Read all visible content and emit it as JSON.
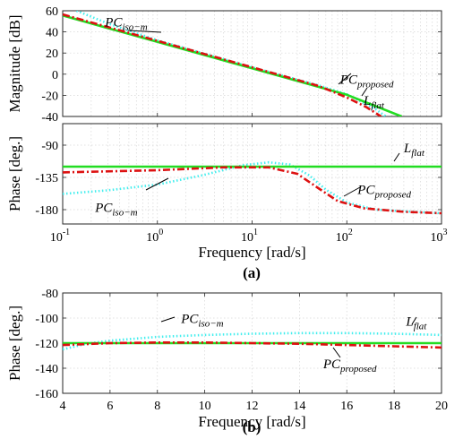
{
  "colors": {
    "L_flat": "#22dd22",
    "PC_proposed": "#dd1111",
    "PC_iso_m": "#44eeee"
  },
  "chart_data": [
    {
      "panel": "a",
      "subplot": "magnitude",
      "type": "line",
      "xscale": "log",
      "xlim": [
        0.1,
        1000
      ],
      "ylim": [
        -40,
        60
      ],
      "ylabel": "Magnitude [dB]",
      "yticks": [
        -40,
        -20,
        0,
        20,
        40,
        60
      ],
      "grid": true,
      "series": [
        {
          "name": "L_flat",
          "x": [
            0.1,
            1,
            10,
            100,
            380
          ],
          "y": [
            55.5,
            30.5,
            5.5,
            -19.5,
            -40
          ]
        },
        {
          "name": "PC_proposed",
          "x": [
            0.1,
            1,
            10,
            50,
            100,
            160,
            230
          ],
          "y": [
            56.5,
            31.5,
            6.5,
            -11,
            -22,
            -31,
            -40
          ]
        },
        {
          "name": "PC_iso-m",
          "x": [
            0.14,
            0.3,
            1,
            10,
            50,
            100,
            200,
            260
          ],
          "y": [
            60,
            48,
            32,
            6.5,
            -10.5,
            -19,
            -33,
            -40
          ]
        }
      ],
      "annotations": [
        {
          "base": "PC",
          "sub": "iso−m",
          "x": 0.28,
          "y": 45
        },
        {
          "base": "PC",
          "sub": "proposed",
          "x": 85,
          "y": -9
        },
        {
          "base": "L",
          "sub": "flat",
          "x": 150,
          "y": -29
        }
      ]
    },
    {
      "panel": "a",
      "subplot": "phase",
      "type": "line",
      "xscale": "log",
      "xlim": [
        0.1,
        1000
      ],
      "ylim": [
        -200,
        -60
      ],
      "ylabel": "Phase [deg.]",
      "xlabel": "Frequency [rad/s]",
      "xticks": [
        0.1,
        1,
        10,
        100,
        1000
      ],
      "xticklabels": [
        "10",
        "10",
        "10",
        "10",
        "10"
      ],
      "xtickexponents": [
        "-1",
        "0",
        "1",
        "2",
        "3"
      ],
      "yticks": [
        -180,
        -135,
        -90
      ],
      "grid": true,
      "series": [
        {
          "name": "L_flat",
          "x": [
            0.1,
            1000
          ],
          "y": [
            -120,
            -120
          ]
        },
        {
          "name": "PC_proposed",
          "x": [
            0.1,
            1,
            5,
            15,
            30,
            50,
            80,
            150,
            400,
            1000
          ],
          "y": [
            -128,
            -125,
            -121,
            -121,
            -130,
            -150,
            -168,
            -178,
            -183,
            -185
          ]
        },
        {
          "name": "PC_iso-m",
          "x": [
            0.1,
            0.3,
            1,
            3,
            8,
            15,
            25,
            40,
            60,
            100,
            200,
            1000
          ],
          "y": [
            -158,
            -153,
            -145,
            -132,
            -118,
            -114,
            -117,
            -132,
            -152,
            -170,
            -180,
            -185
          ]
        }
      ],
      "annotations": [
        {
          "base": "L",
          "sub": "flat",
          "x": 400,
          "y": -100
        },
        {
          "base": "PC",
          "sub": "proposed",
          "x": 130,
          "y": -158
        },
        {
          "base": "PC",
          "sub": "iso−m",
          "x": 0.22,
          "y": -183
        }
      ]
    },
    {
      "panel": "b",
      "type": "line",
      "xlim": [
        4,
        20
      ],
      "ylim": [
        -160,
        -80
      ],
      "ylabel": "Phase [deg.]",
      "xlabel": "Frequency [rad/s]",
      "xticks": [
        4,
        6,
        8,
        10,
        12,
        14,
        16,
        18,
        20
      ],
      "yticks": [
        -160,
        -140,
        -120,
        -100,
        -80
      ],
      "grid": true,
      "series": [
        {
          "name": "L_flat",
          "x": [
            4,
            20
          ],
          "y": [
            -120,
            -120
          ]
        },
        {
          "name": "PC_proposed",
          "x": [
            4,
            6,
            8,
            10,
            12,
            14,
            16,
            18,
            20
          ],
          "y": [
            -121.5,
            -120,
            -119.5,
            -119.5,
            -120,
            -120.5,
            -121.5,
            -122.5,
            -123.5
          ]
        },
        {
          "name": "PC_iso-m",
          "x": [
            4,
            5,
            6,
            8,
            10,
            12,
            14,
            16,
            18,
            20
          ],
          "y": [
            -125,
            -120.5,
            -118,
            -115,
            -113.5,
            -112.5,
            -112,
            -112,
            -112.5,
            -113.5
          ]
        }
      ],
      "annotations": [
        {
          "base": "PC",
          "sub": "iso−m",
          "x": 9,
          "y": -104
        },
        {
          "base": "L",
          "sub": "flat",
          "x": 18.5,
          "y": -106
        },
        {
          "base": "PC",
          "sub": "proposed",
          "x": 15,
          "y": -140
        }
      ]
    }
  ],
  "panel_labels": [
    "(a)",
    "(b)"
  ]
}
